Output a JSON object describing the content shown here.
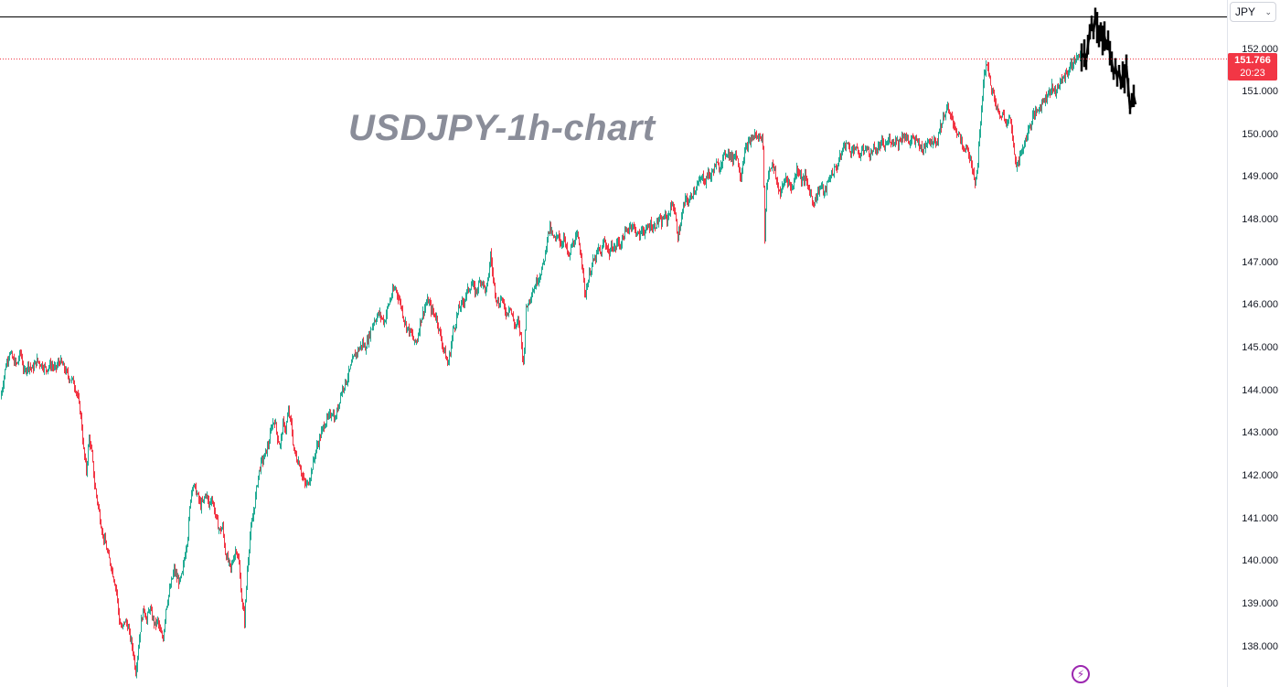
{
  "chart_data": {
    "type": "candlestick",
    "title": "USDJPY-1h-chart",
    "currency": "JPY",
    "last_price": "151.766",
    "countdown": "20:23",
    "ylim": [
      137.5,
      152.8
    ],
    "y_ticks": [
      "152.000",
      "151.000",
      "150.000",
      "149.000",
      "148.000",
      "147.000",
      "146.000",
      "145.000",
      "144.000",
      "143.000",
      "142.000",
      "141.000",
      "140.000",
      "139.000",
      "138.000"
    ],
    "y_tick_values": [
      152,
      151,
      150,
      149,
      148,
      147,
      146,
      145,
      144,
      143,
      142,
      141,
      140,
      139,
      138
    ],
    "reference_lines": [
      {
        "label": "high",
        "value": 152.77,
        "style": "solid",
        "color": "#000000"
      },
      {
        "label": "last",
        "value": 151.766,
        "style": "dotted",
        "color": "#f23645"
      }
    ],
    "colors": {
      "up": "#22ab94",
      "down": "#f23645",
      "projection": "#000000",
      "axis_text": "#131722"
    },
    "price_path": [
      [
        0,
        143.8
      ],
      [
        3,
        144.2
      ],
      [
        6,
        144.6
      ],
      [
        10,
        144.9
      ],
      [
        14,
        144.7
      ],
      [
        18,
        144.6
      ],
      [
        22,
        144.9
      ],
      [
        26,
        144.4
      ],
      [
        30,
        144.6
      ],
      [
        35,
        144.5
      ],
      [
        40,
        144.7
      ],
      [
        45,
        144.6
      ],
      [
        50,
        144.5
      ],
      [
        55,
        144.6
      ],
      [
        60,
        144.5
      ],
      [
        65,
        144.7
      ],
      [
        70,
        144.5
      ],
      [
        75,
        144.3
      ],
      [
        80,
        144.2
      ],
      [
        84,
        143.9
      ],
      [
        88,
        143.4
      ],
      [
        91,
        142.6
      ],
      [
        94,
        142.1
      ],
      [
        97,
        142.9
      ],
      [
        100,
        142.5
      ],
      [
        103,
        141.8
      ],
      [
        106,
        141.4
      ],
      [
        109,
        141.0
      ],
      [
        112,
        140.6
      ],
      [
        115,
        140.4
      ],
      [
        118,
        140.1
      ],
      [
        121,
        139.9
      ],
      [
        124,
        139.6
      ],
      [
        127,
        139.3
      ],
      [
        130,
        138.6
      ],
      [
        133,
        138.4
      ],
      [
        136,
        138.6
      ],
      [
        139,
        138.5
      ],
      [
        142,
        138.2
      ],
      [
        145,
        137.9
      ],
      [
        148,
        137.4
      ],
      [
        151,
        138.0
      ],
      [
        154,
        138.6
      ],
      [
        157,
        138.9
      ],
      [
        160,
        138.6
      ],
      [
        163,
        138.9
      ],
      [
        166,
        138.7
      ],
      [
        169,
        138.5
      ],
      [
        172,
        138.6
      ],
      [
        175,
        138.3
      ],
      [
        178,
        138.2
      ],
      [
        181,
        138.9
      ],
      [
        184,
        139.2
      ],
      [
        187,
        139.5
      ],
      [
        190,
        139.8
      ],
      [
        193,
        139.6
      ],
      [
        196,
        139.5
      ],
      [
        199,
        139.7
      ],
      [
        202,
        140.2
      ],
      [
        205,
        140.6
      ],
      [
        208,
        141.5
      ],
      [
        210,
        141.8
      ],
      [
        213,
        141.7
      ],
      [
        216,
        141.5
      ],
      [
        219,
        141.3
      ],
      [
        222,
        141.4
      ],
      [
        225,
        141.6
      ],
      [
        228,
        141.3
      ],
      [
        231,
        141.5
      ],
      [
        234,
        141.2
      ],
      [
        237,
        140.9
      ],
      [
        240,
        140.7
      ],
      [
        243,
        140.8
      ],
      [
        246,
        140.2
      ],
      [
        249,
        140.0
      ],
      [
        252,
        139.8
      ],
      [
        255,
        140.1
      ],
      [
        258,
        140.3
      ],
      [
        261,
        139.9
      ],
      [
        264,
        139.1
      ],
      [
        267,
        138.6
      ],
      [
        270,
        139.8
      ],
      [
        273,
        140.6
      ],
      [
        276,
        141.0
      ],
      [
        279,
        141.5
      ],
      [
        282,
        142.0
      ],
      [
        285,
        142.3
      ],
      [
        288,
        142.4
      ],
      [
        291,
        142.6
      ],
      [
        294,
        142.8
      ],
      [
        297,
        143.2
      ],
      [
        300,
        143.3
      ],
      [
        303,
        142.9
      ],
      [
        306,
        142.7
      ],
      [
        309,
        143.2
      ],
      [
        312,
        143.1
      ],
      [
        315,
        143.5
      ],
      [
        318,
        143.2
      ],
      [
        321,
        142.6
      ],
      [
        324,
        142.4
      ],
      [
        327,
        142.3
      ],
      [
        330,
        142.0
      ],
      [
        333,
        141.8
      ],
      [
        336,
        141.8
      ],
      [
        339,
        142.0
      ],
      [
        342,
        142.3
      ],
      [
        345,
        142.6
      ],
      [
        348,
        142.8
      ],
      [
        351,
        143.0
      ],
      [
        354,
        143.2
      ],
      [
        357,
        143.3
      ],
      [
        360,
        143.4
      ],
      [
        363,
        143.5
      ],
      [
        366,
        143.3
      ],
      [
        369,
        143.6
      ],
      [
        372,
        143.9
      ],
      [
        375,
        144.1
      ],
      [
        378,
        144.2
      ],
      [
        381,
        144.4
      ],
      [
        384,
        144.6
      ],
      [
        387,
        144.8
      ],
      [
        390,
        144.9
      ],
      [
        393,
        145.0
      ],
      [
        396,
        145.1
      ],
      [
        399,
        145.0
      ],
      [
        402,
        145.2
      ],
      [
        405,
        145.4
      ],
      [
        408,
        145.6
      ],
      [
        411,
        145.7
      ],
      [
        414,
        145.8
      ],
      [
        417,
        145.7
      ],
      [
        420,
        145.6
      ],
      [
        423,
        145.9
      ],
      [
        426,
        146.1
      ],
      [
        429,
        146.3
      ],
      [
        432,
        146.4
      ],
      [
        435,
        146.2
      ],
      [
        438,
        146.0
      ],
      [
        441,
        145.7
      ],
      [
        444,
        145.5
      ],
      [
        447,
        145.4
      ],
      [
        450,
        145.3
      ],
      [
        453,
        145.1
      ],
      [
        456,
        145.2
      ],
      [
        459,
        145.6
      ],
      [
        462,
        145.8
      ],
      [
        465,
        146.0
      ],
      [
        468,
        146.1
      ],
      [
        471,
        145.9
      ],
      [
        474,
        145.8
      ],
      [
        477,
        145.7
      ],
      [
        480,
        145.4
      ],
      [
        483,
        145.1
      ],
      [
        486,
        144.9
      ],
      [
        489,
        144.6
      ],
      [
        492,
        144.9
      ],
      [
        495,
        145.4
      ],
      [
        498,
        145.6
      ],
      [
        501,
        145.9
      ],
      [
        504,
        146.0
      ],
      [
        507,
        146.1
      ],
      [
        510,
        146.3
      ],
      [
        513,
        146.4
      ],
      [
        516,
        146.5
      ],
      [
        519,
        146.3
      ],
      [
        522,
        146.4
      ],
      [
        525,
        146.6
      ],
      [
        528,
        146.5
      ],
      [
        531,
        146.3
      ],
      [
        534,
        146.7
      ],
      [
        536,
        147.2
      ],
      [
        539,
        146.6
      ],
      [
        542,
        146.2
      ],
      [
        545,
        146.0
      ],
      [
        548,
        146.2
      ],
      [
        551,
        145.9
      ],
      [
        554,
        145.8
      ],
      [
        557,
        146.0
      ],
      [
        560,
        145.7
      ],
      [
        563,
        145.5
      ],
      [
        566,
        145.6
      ],
      [
        569,
        145.3
      ],
      [
        572,
        144.6
      ],
      [
        575,
        145.9
      ],
      [
        578,
        146.1
      ],
      [
        581,
        146.3
      ],
      [
        584,
        146.4
      ],
      [
        587,
        146.6
      ],
      [
        590,
        146.7
      ],
      [
        593,
        146.9
      ],
      [
        596,
        147.2
      ],
      [
        598,
        147.6
      ],
      [
        601,
        147.8
      ],
      [
        604,
        147.6
      ],
      [
        607,
        147.5
      ],
      [
        610,
        147.7
      ],
      [
        613,
        147.4
      ],
      [
        616,
        147.6
      ],
      [
        619,
        147.3
      ],
      [
        622,
        147.1
      ],
      [
        625,
        147.4
      ],
      [
        628,
        147.5
      ],
      [
        631,
        147.6
      ],
      [
        634,
        147.3
      ],
      [
        637,
        146.9
      ],
      [
        639,
        146.2
      ],
      [
        642,
        146.5
      ],
      [
        645,
        146.8
      ],
      [
        648,
        147.0
      ],
      [
        651,
        147.1
      ],
      [
        654,
        147.3
      ],
      [
        657,
        147.2
      ],
      [
        660,
        147.5
      ],
      [
        663,
        147.4
      ],
      [
        666,
        147.2
      ],
      [
        669,
        147.4
      ],
      [
        672,
        147.3
      ],
      [
        675,
        147.5
      ],
      [
        678,
        147.4
      ],
      [
        681,
        147.6
      ],
      [
        684,
        147.7
      ],
      [
        687,
        147.8
      ],
      [
        690,
        147.9
      ],
      [
        693,
        147.8
      ],
      [
        696,
        147.7
      ],
      [
        699,
        147.6
      ],
      [
        702,
        147.8
      ],
      [
        705,
        147.7
      ],
      [
        708,
        147.8
      ],
      [
        711,
        147.9
      ],
      [
        714,
        147.8
      ],
      [
        717,
        147.9
      ],
      [
        720,
        148.0
      ],
      [
        723,
        147.9
      ],
      [
        726,
        148.1
      ],
      [
        729,
        148.0
      ],
      [
        732,
        148.2
      ],
      [
        735,
        148.4
      ],
      [
        738,
        148.1
      ],
      [
        741,
        147.6
      ],
      [
        744,
        147.9
      ],
      [
        747,
        148.3
      ],
      [
        750,
        148.5
      ],
      [
        753,
        148.4
      ],
      [
        756,
        148.6
      ],
      [
        759,
        148.7
      ],
      [
        762,
        148.8
      ],
      [
        765,
        148.9
      ],
      [
        768,
        149.0
      ],
      [
        771,
        148.9
      ],
      [
        774,
        149.1
      ],
      [
        777,
        149.0
      ],
      [
        780,
        149.2
      ],
      [
        783,
        149.3
      ],
      [
        786,
        149.2
      ],
      [
        789,
        149.4
      ],
      [
        792,
        149.5
      ],
      [
        795,
        149.6
      ],
      [
        798,
        149.5
      ],
      [
        801,
        149.4
      ],
      [
        804,
        149.6
      ],
      [
        807,
        149.3
      ],
      [
        810,
        149.0
      ],
      [
        813,
        149.5
      ],
      [
        816,
        149.7
      ],
      [
        819,
        149.8
      ],
      [
        822,
        149.9
      ],
      [
        825,
        150.0
      ],
      [
        828,
        149.9
      ],
      [
        831,
        150.0
      ],
      [
        834,
        149.8
      ],
      [
        836,
        147.6
      ],
      [
        838,
        148.8
      ],
      [
        841,
        149.2
      ],
      [
        844,
        149.3
      ],
      [
        847,
        149.1
      ],
      [
        850,
        148.8
      ],
      [
        853,
        148.6
      ],
      [
        856,
        148.8
      ],
      [
        859,
        149.0
      ],
      [
        862,
        148.9
      ],
      [
        865,
        148.7
      ],
      [
        868,
        148.9
      ],
      [
        871,
        149.2
      ],
      [
        874,
        149.1
      ],
      [
        877,
        148.9
      ],
      [
        880,
        149.0
      ],
      [
        883,
        148.8
      ],
      [
        886,
        148.6
      ],
      [
        889,
        148.4
      ],
      [
        892,
        148.5
      ],
      [
        895,
        148.7
      ],
      [
        898,
        148.8
      ],
      [
        901,
        148.6
      ],
      [
        904,
        148.8
      ],
      [
        907,
        149.0
      ],
      [
        910,
        149.1
      ],
      [
        913,
        149.2
      ],
      [
        916,
        149.3
      ],
      [
        919,
        149.5
      ],
      [
        922,
        149.7
      ],
      [
        925,
        149.8
      ],
      [
        928,
        149.7
      ],
      [
        931,
        149.6
      ],
      [
        934,
        149.7
      ],
      [
        937,
        149.6
      ],
      [
        940,
        149.5
      ],
      [
        943,
        149.6
      ],
      [
        946,
        149.7
      ],
      [
        949,
        149.6
      ],
      [
        952,
        149.5
      ],
      [
        955,
        149.7
      ],
      [
        958,
        149.6
      ],
      [
        961,
        149.7
      ],
      [
        964,
        149.8
      ],
      [
        967,
        149.7
      ],
      [
        970,
        149.8
      ],
      [
        973,
        149.9
      ],
      [
        976,
        149.8
      ],
      [
        979,
        149.9
      ],
      [
        982,
        149.8
      ],
      [
        985,
        149.9
      ],
      [
        988,
        150.0
      ],
      [
        991,
        149.9
      ],
      [
        994,
        149.8
      ],
      [
        997,
        149.9
      ],
      [
        1000,
        149.8
      ],
      [
        1003,
        149.9
      ],
      [
        1006,
        149.7
      ],
      [
        1009,
        149.6
      ],
      [
        1012,
        149.8
      ],
      [
        1015,
        149.9
      ],
      [
        1018,
        149.8
      ],
      [
        1021,
        149.9
      ],
      [
        1024,
        149.8
      ],
      [
        1027,
        150.1
      ],
      [
        1030,
        150.3
      ],
      [
        1033,
        150.5
      ],
      [
        1036,
        150.6
      ],
      [
        1039,
        150.4
      ],
      [
        1042,
        150.3
      ],
      [
        1045,
        150.1
      ],
      [
        1048,
        150.0
      ],
      [
        1051,
        149.8
      ],
      [
        1054,
        149.6
      ],
      [
        1057,
        149.7
      ],
      [
        1060,
        149.5
      ],
      [
        1063,
        149.1
      ],
      [
        1066,
        148.9
      ],
      [
        1069,
        149.3
      ],
      [
        1072,
        150.3
      ],
      [
        1075,
        151.2
      ],
      [
        1078,
        151.7
      ],
      [
        1081,
        151.4
      ],
      [
        1084,
        151.1
      ],
      [
        1087,
        150.8
      ],
      [
        1090,
        150.6
      ],
      [
        1093,
        150.4
      ],
      [
        1096,
        150.5
      ],
      [
        1099,
        150.3
      ],
      [
        1102,
        150.4
      ],
      [
        1105,
        150.3
      ],
      [
        1108,
        149.7
      ],
      [
        1111,
        149.3
      ],
      [
        1114,
        149.4
      ],
      [
        1117,
        149.6
      ],
      [
        1120,
        149.8
      ],
      [
        1123,
        150.0
      ],
      [
        1126,
        150.2
      ],
      [
        1129,
        150.4
      ],
      [
        1132,
        150.5
      ],
      [
        1135,
        150.6
      ],
      [
        1138,
        150.7
      ],
      [
        1141,
        150.8
      ],
      [
        1144,
        150.9
      ],
      [
        1147,
        151.0
      ],
      [
        1150,
        151.1
      ],
      [
        1153,
        151.0
      ],
      [
        1156,
        151.1
      ],
      [
        1159,
        151.2
      ],
      [
        1162,
        151.3
      ],
      [
        1165,
        151.4
      ],
      [
        1168,
        151.5
      ],
      [
        1171,
        151.6
      ],
      [
        1174,
        151.7
      ],
      [
        1177,
        151.8
      ],
      [
        1181,
        151.8
      ]
    ],
    "projection_path": [
      [
        1183,
        151.8
      ],
      [
        1186,
        151.9
      ],
      [
        1188,
        151.7
      ],
      [
        1190,
        152.1
      ],
      [
        1192,
        152.4
      ],
      [
        1194,
        152.6
      ],
      [
        1196,
        152.4
      ],
      [
        1198,
        152.77
      ],
      [
        1200,
        152.5
      ],
      [
        1202,
        152.3
      ],
      [
        1204,
        152.4
      ],
      [
        1206,
        152.2
      ],
      [
        1208,
        152.3
      ],
      [
        1210,
        152.1
      ],
      [
        1212,
        152.2
      ],
      [
        1214,
        151.9
      ],
      [
        1216,
        151.7
      ],
      [
        1218,
        151.4
      ],
      [
        1220,
        151.6
      ],
      [
        1222,
        151.3
      ],
      [
        1224,
        151.5
      ],
      [
        1226,
        151.2
      ],
      [
        1228,
        151.4
      ],
      [
        1230,
        151.3
      ],
      [
        1232,
        151.6
      ],
      [
        1234,
        151.1
      ],
      [
        1236,
        150.6
      ],
      [
        1238,
        150.8
      ],
      [
        1240,
        150.9
      ],
      [
        1242,
        150.7
      ]
    ]
  }
}
